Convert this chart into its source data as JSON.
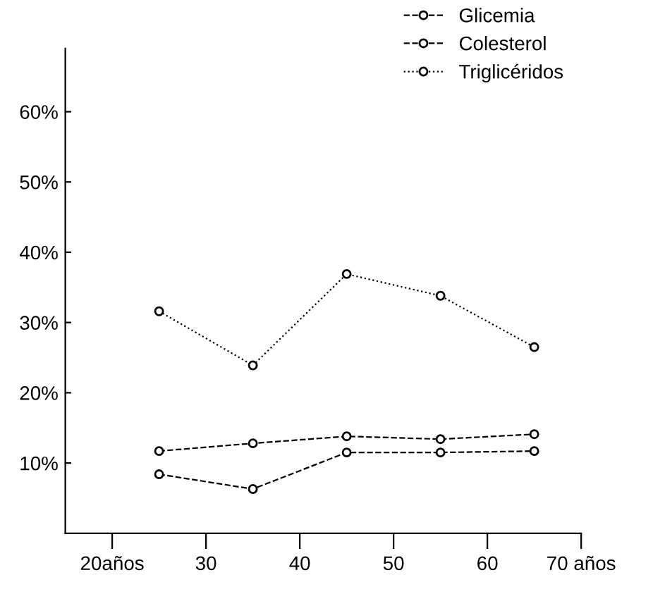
{
  "chart_data": {
    "type": "line",
    "x": [
      25,
      35,
      45,
      55,
      65
    ],
    "series": [
      {
        "name": "Glicemia",
        "color": "#000000",
        "line_style": "dashed",
        "values": [
          8.4,
          6.3,
          11.5,
          11.5,
          11.7
        ]
      },
      {
        "name": "Colesterol",
        "color": "#000000",
        "line_style": "dashed",
        "values": [
          11.7,
          12.8,
          13.8,
          13.4,
          14.1
        ]
      },
      {
        "name": "Triglicéridos",
        "color": "#000000",
        "line_style": "dotted",
        "values": [
          31.6,
          23.9,
          36.9,
          33.8,
          26.5
        ]
      }
    ],
    "marker": "circle",
    "xlim": [
      15,
      70
    ],
    "ylim": [
      0,
      69
    ],
    "xticks": [
      {
        "value": 20,
        "label": "20años"
      },
      30,
      40,
      50,
      60,
      {
        "value": 70,
        "label": "70 años"
      }
    ],
    "yticks": [
      {
        "value": 10,
        "label": "10%"
      },
      {
        "value": 20,
        "label": "20%"
      },
      {
        "value": 30,
        "label": "30%"
      },
      {
        "value": 40,
        "label": "40%"
      },
      {
        "value": 50,
        "label": "50%"
      },
      {
        "value": 60,
        "label": "60%"
      }
    ],
    "grid": false,
    "legend": "top right"
  }
}
